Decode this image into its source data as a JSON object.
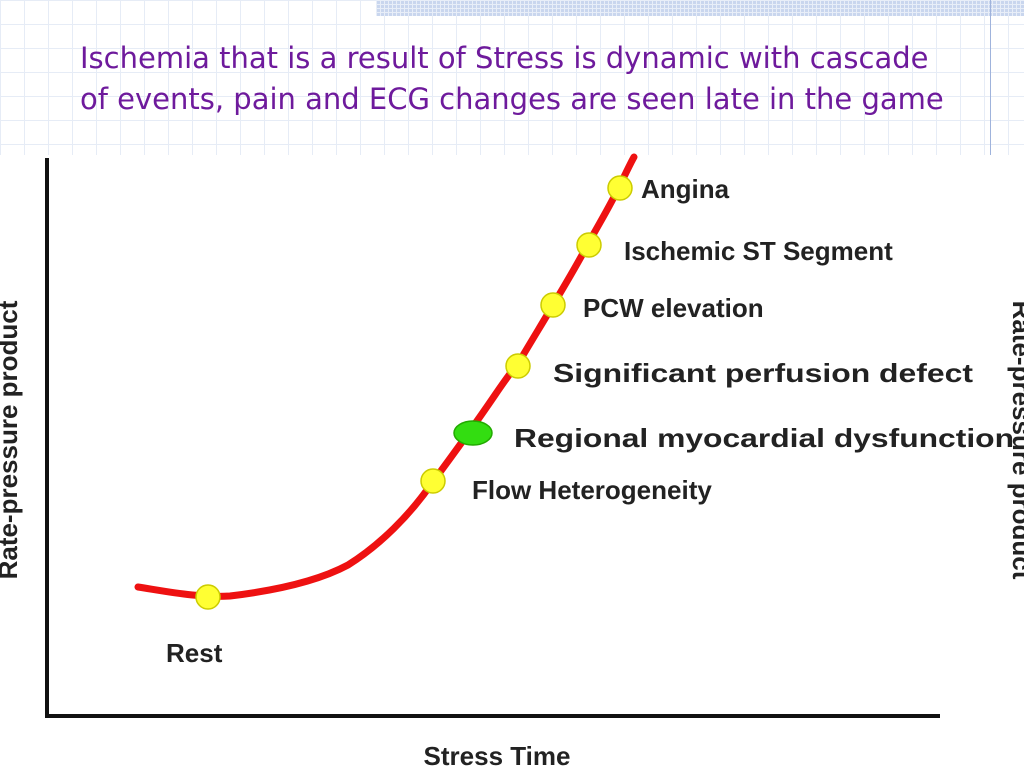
{
  "slide": {
    "title": "Ischemia that is a result of Stress is dynamic with cascade of events, pain and ECG changes are seen late in the game"
  },
  "figure": {
    "y_axis_label": "Rate-pressure product",
    "x_axis_label": "Stress Time",
    "curve_color": "#ee1111",
    "marker_color": "#ffff33",
    "highlight_marker_color": "#33dd11",
    "events": [
      {
        "label": "Rest",
        "highlight": false
      },
      {
        "label": "Flow Heterogeneity",
        "highlight": false
      },
      {
        "label": "Regional myocardial dysfunction",
        "highlight": true
      },
      {
        "label": "Significant perfusion defect",
        "highlight": false
      },
      {
        "label": "PCW elevation",
        "highlight": false
      },
      {
        "label": "Ischemic ST Segment",
        "highlight": false
      },
      {
        "label": "Angina",
        "highlight": false
      }
    ]
  }
}
